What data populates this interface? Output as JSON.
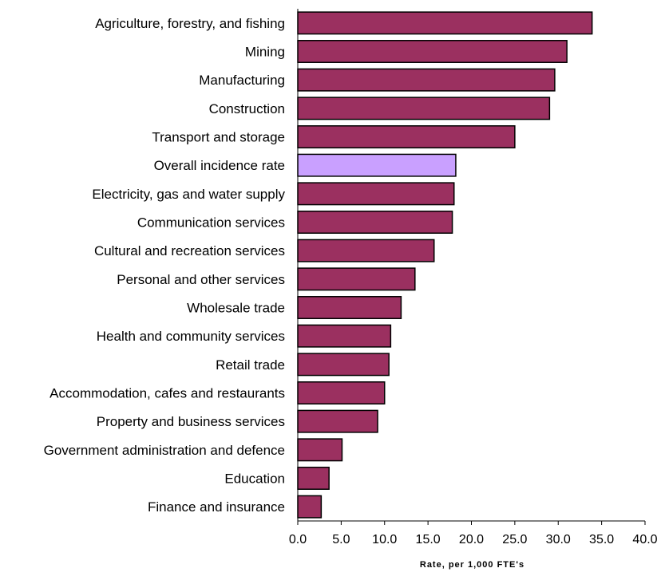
{
  "chart_data": {
    "type": "bar",
    "orientation": "horizontal",
    "categories": [
      "Agriculture, forestry, and fishing",
      "Mining",
      "Manufacturing",
      "Construction",
      "Transport and storage",
      "Overall incidence rate",
      "Electricity, gas and water supply",
      "Communication services",
      "Cultural and recreation services",
      "Personal and other services",
      "Wholesale trade",
      "Health and community services",
      "Retail trade",
      "Accommodation, cafes and restaurants",
      "Property and business services",
      "Government administration and defence",
      "Education",
      "Finance and insurance"
    ],
    "values": [
      33.9,
      31.0,
      29.6,
      29.0,
      25.0,
      18.2,
      18.0,
      17.8,
      15.7,
      13.5,
      11.9,
      10.7,
      10.5,
      10.0,
      9.2,
      5.1,
      3.6,
      2.7
    ],
    "highlight_index": 5,
    "xlabel": "Rate, per 1,000 FTE's",
    "ylabel": "",
    "xlim": [
      0,
      40
    ],
    "x_ticks": [
      "0.0",
      "5.0",
      "10.0",
      "15.0",
      "20.0",
      "25.0",
      "30.0",
      "35.0",
      "40.0"
    ],
    "grid": false,
    "legend": "none",
    "colors": {
      "bar": "#9b3060",
      "highlight": "#c9a0ff",
      "outline": "#000000"
    }
  }
}
